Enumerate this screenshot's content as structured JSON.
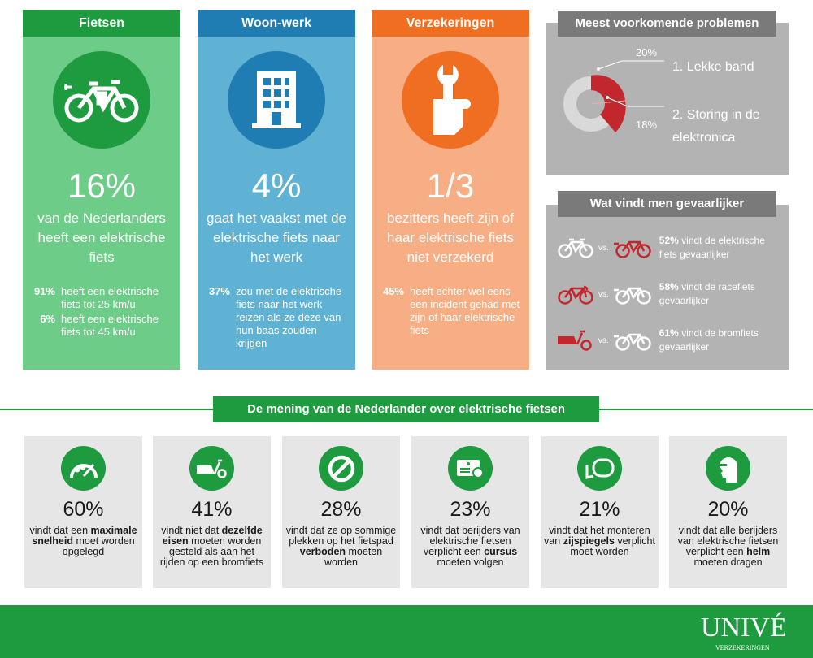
{
  "colors": {
    "green_dark": "#1e9a3f",
    "green_light": "#6dcc87",
    "blue_dark": "#1f7db3",
    "blue_light": "#5fb2d4",
    "orange_dark": "#f06e22",
    "orange_light": "#f8ae85",
    "gray_header": "#7a7a7a",
    "gray_panel": "#b3b3b3",
    "red": "#c1272d",
    "card_bg": "#e6e6e6"
  },
  "columns": [
    {
      "title": "Fietsen",
      "icon": "electric-bike-icon",
      "big": "16%",
      "sub": "van de Nederlanders heeft een elektrische fiets",
      "stats": [
        {
          "pct": "91%",
          "text": "heeft een elektrische fiets tot 25 km/u"
        },
        {
          "pct": "6%",
          "text": "heeft een elektrische fiets tot 45 km/u"
        }
      ]
    },
    {
      "title": "Woon-werk",
      "icon": "office-building-icon",
      "big": "4%",
      "sub": "gaat het vaakst met de elektrische fiets naar het werk",
      "stats": [
        {
          "pct": "37%",
          "text": "zou met de elektrische fiets naar het werk reizen als ze deze van hun baas zouden krijgen"
        }
      ]
    },
    {
      "title": "Verzekeringen",
      "icon": "hand-wrench-icon",
      "big": "1/3",
      "sub": "bezitters heeft zijn of haar elektrische fiets niet verzekerd",
      "stats": [
        {
          "pct": "45%",
          "text": "heeft echter wel eens een incident gehad met zijn of haar elektrische fiets"
        }
      ]
    }
  ],
  "problems": {
    "title": "Meest voorkomende problemen",
    "items": [
      {
        "pct": "20%",
        "label": "1. Lekke band",
        "value": 20
      },
      {
        "pct": "18%",
        "label": "2. Storing in de elektronica",
        "value": 18
      }
    ]
  },
  "danger": {
    "title": "Wat vindt men gevaarlijker",
    "vs": "vs.",
    "rows": [
      {
        "left": "bicycle-icon",
        "right": "electric-bike-icon",
        "pct": "52%",
        "text": "vindt de elektrische fiets gevaarlijker"
      },
      {
        "left": "racing-bike-icon",
        "right": "electric-bike-icon",
        "pct": "58%",
        "text": "vindt de racefiets gevaarlijker"
      },
      {
        "left": "scooter-icon",
        "right": "electric-bike-icon",
        "pct": "61%",
        "text": "vindt de bromfiets gevaarlijker"
      }
    ]
  },
  "opinion": {
    "title": "De mening van de Nederlander over elektrische fietsen",
    "cards": [
      {
        "icon": "speedometer-icon",
        "pct": "60%",
        "pre": "vindt dat een",
        "bold": "maximale snelheid",
        "post": "moet worden opgelegd"
      },
      {
        "icon": "scooter-icon",
        "pct": "41%",
        "pre": "vindt niet dat",
        "bold": "dezelfde eisen",
        "post": "moeten worden gesteld als aan het rijden op een bromfiets"
      },
      {
        "icon": "prohibited-icon",
        "pct": "28%",
        "pre": "vindt dat ze op sommige plekken op het fietspad",
        "bold": "verboden",
        "post": "moeten worden"
      },
      {
        "icon": "certificate-icon",
        "pct": "23%",
        "pre": "vindt dat berijders van elektrische fietsen verplicht een",
        "bold": "cursus",
        "post": "moeten volgen"
      },
      {
        "icon": "mirror-icon",
        "pct": "21%",
        "pre": "vindt dat het monteren van",
        "bold": "zijspiegels",
        "post": "verplicht moet worden"
      },
      {
        "icon": "helmet-icon",
        "pct": "20%",
        "pre": "vindt dat alle berijders van elektrische fietsen verplicht een",
        "bold": "helm",
        "post": "moeten dragen"
      }
    ]
  },
  "footer": {
    "logo": "UNIVÉ",
    "logo_sub": "VERZEKERINGEN"
  }
}
